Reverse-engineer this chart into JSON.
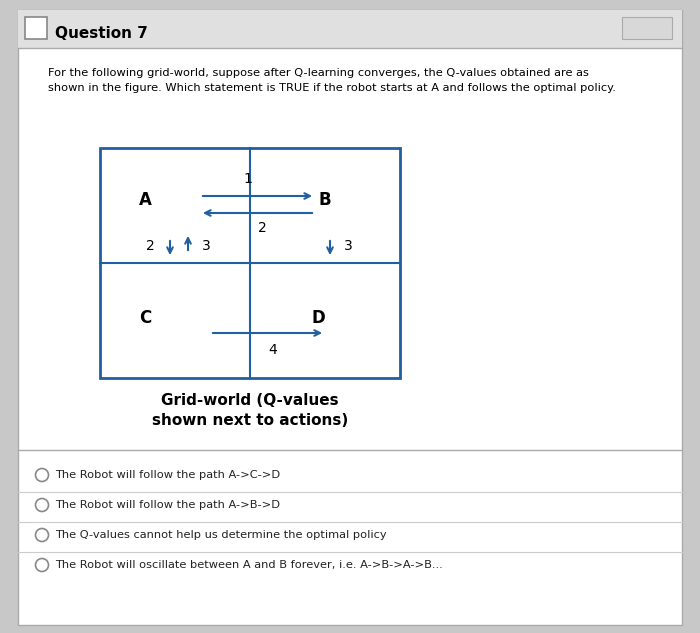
{
  "title": "Question 7",
  "description": "For the following grid-world, suppose after Q-learning converges, the Q-values obtained are as\nshown in the figure. Which statement is TRUE if the robot starts at A and follows the optimal policy.",
  "caption": "Grid-world (Q-values\nshown next to actions)",
  "options": [
    "The Robot will follow the path A->C->D",
    "The Robot will follow the path A->B->D",
    "The Q-values cannot help us determine the optimal policy",
    "The Robot will oscillate between A and B forever, i.e. A->B->A->B..."
  ],
  "bg_color": "#c8c8c8",
  "card_color": "#ffffff",
  "header_color": "#e0e0e0",
  "grid_color": "#2060a0",
  "arrow_color": "#2060a0",
  "option_divider_color": "#cccccc"
}
